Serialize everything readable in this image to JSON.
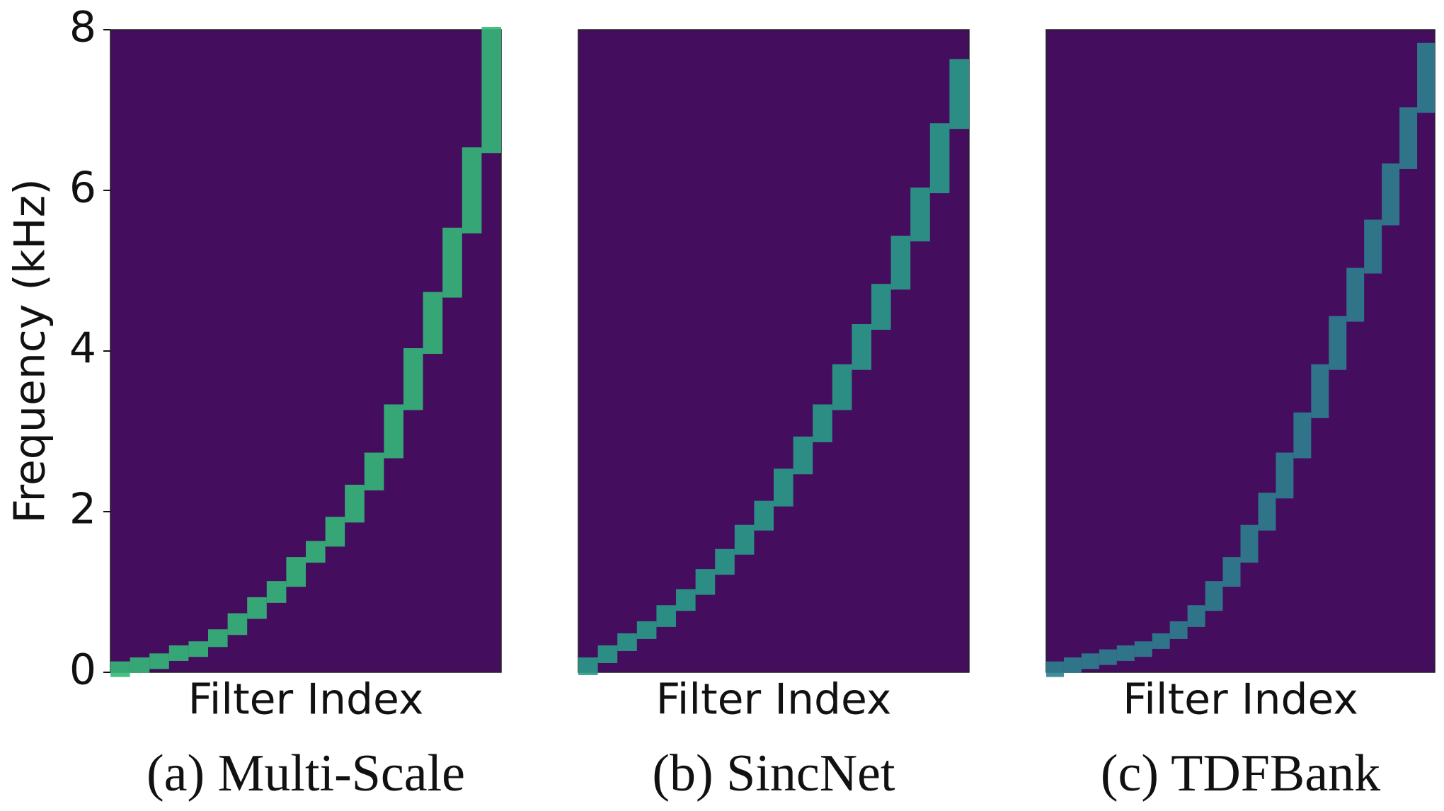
{
  "chart_data": [
    {
      "type": "filterbank",
      "caption": "(a) Multi-Scale",
      "xlabel": "Filter Index",
      "ylabel": "Frequency (kHz)",
      "values": [
        0.1,
        0.15,
        0.2,
        0.3,
        0.35,
        0.5,
        0.7,
        0.9,
        1.1,
        1.4,
        1.6,
        1.9,
        2.3,
        2.7,
        3.3,
        4.0,
        4.7,
        5.5,
        6.5,
        8.0
      ],
      "ylim": [
        0,
        8
      ],
      "yticks": [
        0,
        2,
        4,
        6,
        8
      ],
      "background": "#440d5e",
      "color": "#35b779"
    },
    {
      "type": "filterbank",
      "caption": "(b) SincNet",
      "xlabel": "Filter Index",
      "values": [
        0.15,
        0.3,
        0.45,
        0.6,
        0.8,
        1.0,
        1.25,
        1.5,
        1.8,
        2.1,
        2.5,
        2.9,
        3.3,
        3.8,
        4.3,
        4.8,
        5.4,
        6.0,
        6.8,
        7.6
      ],
      "ylim": [
        0,
        8
      ],
      "background": "#440d5e",
      "color": "#2a9b8a"
    },
    {
      "type": "filterbank",
      "caption": "(c) TDFBank",
      "xlabel": "Filter Index",
      "values": [
        0.1,
        0.15,
        0.2,
        0.25,
        0.3,
        0.35,
        0.45,
        0.6,
        0.8,
        1.1,
        1.4,
        1.8,
        2.2,
        2.7,
        3.2,
        3.8,
        4.4,
        5.0,
        5.6,
        6.3,
        7.0,
        7.8
      ],
      "ylim": [
        0,
        8
      ],
      "background": "#440d5e",
      "color": "#2f7f8e"
    }
  ]
}
